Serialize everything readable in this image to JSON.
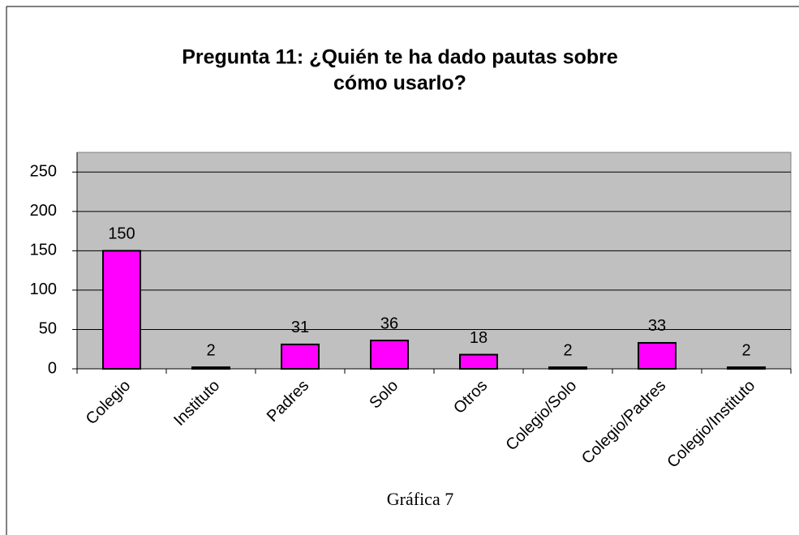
{
  "chart_data": {
    "type": "bar",
    "title": [
      "Pregunta 11: ¿Quién te ha dado pautas sobre",
      "cómo usarlo?"
    ],
    "categories": [
      "Colegio",
      "Instituto",
      "Padres",
      "Solo",
      "Otros",
      "Colegio/Solo",
      "Colegio/Padres",
      "Colegio/Instituto"
    ],
    "values": [
      150,
      2,
      31,
      36,
      18,
      2,
      33,
      2
    ],
    "color": "#ff00ff",
    "background": "#c0c0c0",
    "ylim": [
      0,
      275
    ],
    "yticks": [
      0,
      50,
      100,
      150,
      200,
      250
    ],
    "grid": true,
    "annotation": "...",
    "caption": "Gráfica 7"
  }
}
